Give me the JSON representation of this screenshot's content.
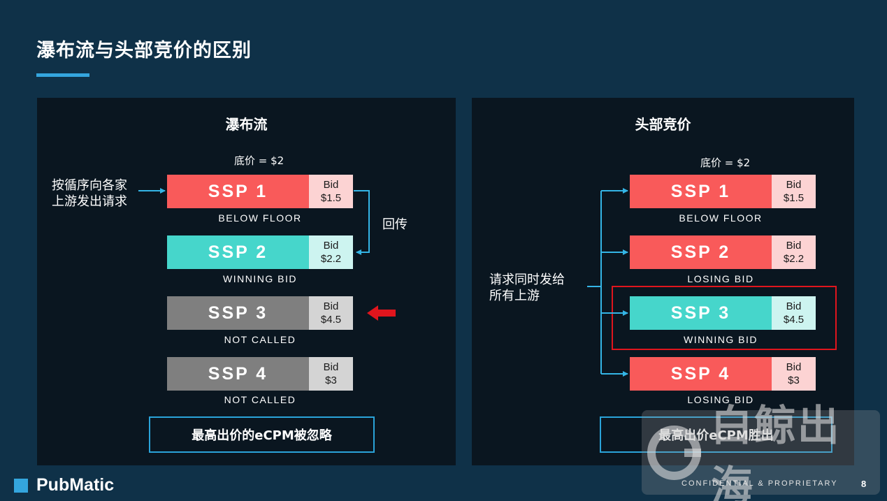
{
  "title": "瀑布流与头部竞价的区别",
  "colors": {
    "background": "#0f3148",
    "panel": "#0a1620",
    "accent": "#34a6de",
    "red": "#f95a5a",
    "teal": "#46d6cb",
    "gray": "#7f7f7f",
    "highlight": "#e0151d"
  },
  "waterfall": {
    "title": "瀑布流",
    "floor": "底价 = $2",
    "left_note": [
      "按循序向各家",
      "上游发出请求"
    ],
    "return_label": "回传",
    "rows": [
      {
        "name": "SSP 1",
        "bid_label": "Bid",
        "bid_value": "$1.5",
        "status": "BELOW FLOOR",
        "color": "red"
      },
      {
        "name": "SSP 2",
        "bid_label": "Bid",
        "bid_value": "$2.2",
        "status": "WINNING BID",
        "color": "teal"
      },
      {
        "name": "SSP 3",
        "bid_label": "Bid",
        "bid_value": "$4.5",
        "status": "NOT CALLED",
        "color": "gray"
      },
      {
        "name": "SSP 4",
        "bid_label": "Bid",
        "bid_value": "$3",
        "status": "NOT CALLED",
        "color": "gray"
      }
    ],
    "result": "最高出价的eCPM被忽略",
    "pointer_icon": "red-left-arrow-icon"
  },
  "header_bidding": {
    "title": "头部竞价",
    "floor": "底价 = $2",
    "left_note": [
      "请求同时发给",
      "所有上游"
    ],
    "rows": [
      {
        "name": "SSP 1",
        "bid_label": "Bid",
        "bid_value": "$1.5",
        "status": "BELOW FLOOR",
        "color": "red"
      },
      {
        "name": "SSP 2",
        "bid_label": "Bid",
        "bid_value": "$2.2",
        "status": "LOSING BID",
        "color": "red"
      },
      {
        "name": "SSP 3",
        "bid_label": "Bid",
        "bid_value": "$4.5",
        "status": "WINNING BID",
        "color": "teal"
      },
      {
        "name": "SSP 4",
        "bid_label": "Bid",
        "bid_value": "$3",
        "status": "LOSING BID",
        "color": "red"
      }
    ],
    "result": "最高出价eCPM胜出"
  },
  "footer": {
    "logo": "PubMatic",
    "confidential": "CONFIDENTIAL & PROPRIETARY",
    "page": "8",
    "watermark": "白鲸出海"
  }
}
